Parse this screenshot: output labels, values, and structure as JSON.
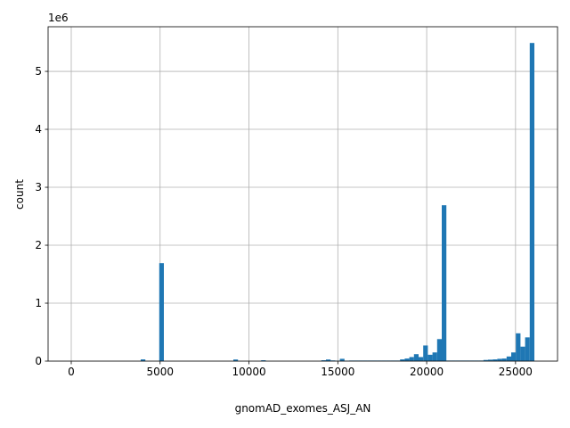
{
  "chart_data": {
    "type": "histogram",
    "xlabel": "gnomAD_exomes_ASJ_AN",
    "ylabel": "count",
    "y_offset_text": "1e6",
    "color": "#1f77b4",
    "grid": true,
    "xlim": [
      -1303,
      27363
    ],
    "ylim": [
      0,
      5770000
    ],
    "xticks": [
      0,
      5000,
      10000,
      15000,
      20000,
      25000
    ],
    "yticks": [
      {
        "value": 0,
        "label": "0"
      },
      {
        "value": 1000000,
        "label": "1"
      },
      {
        "value": 2000000,
        "label": "2"
      },
      {
        "value": 3000000,
        "label": "3"
      },
      {
        "value": 4000000,
        "label": "4"
      },
      {
        "value": 5000000,
        "label": "5"
      }
    ],
    "bins": [
      0,
      260.6,
      521.2,
      781.8,
      1042.4,
      1303,
      1563.6,
      1824.2,
      2084.8,
      2345.4,
      2606,
      2866.6,
      3127.2,
      3387.8,
      3648.4,
      3909,
      4169.6,
      4430.2,
      4690.8,
      4951.4,
      5212,
      5472.6,
      5733.2,
      5993.8,
      6254.4,
      6515,
      6775.6,
      7036.2,
      7296.8,
      7557.4,
      7818,
      8078.6,
      8339.2,
      8599.8,
      8860.4,
      9121,
      9381.6,
      9642.2,
      9902.8,
      10163.4,
      10424,
      10684.6,
      10945.2,
      11205.8,
      11466.4,
      11727,
      11987.6,
      12248.2,
      12508.8,
      12769.4,
      13030,
      13290.6,
      13551.2,
      13811.8,
      14072.4,
      14333,
      14593.6,
      14854.2,
      15114.8,
      15375.4,
      15636,
      15896.6,
      16157.2,
      16417.8,
      16678.4,
      16939,
      17199.6,
      17460.2,
      17720.8,
      17981.4,
      18242,
      18502.6,
      18763.2,
      19023.8,
      19284.4,
      19545,
      19805.6,
      20066.2,
      20326.8,
      20587.4,
      20848,
      21108.6,
      21369.2,
      21629.8,
      21890.4,
      22151,
      22411.6,
      22672.2,
      22932.8,
      23193.4,
      23454,
      23714.6,
      23975.2,
      24235.8,
      24496.4,
      24757,
      25017.6,
      25278.2,
      25538.8,
      25799.4,
      26060
    ],
    "values": [
      0,
      0,
      0,
      0,
      0,
      0,
      0,
      0,
      0,
      0,
      0,
      0,
      0,
      0,
      0,
      30000,
      0,
      0,
      0,
      1690000,
      0,
      0,
      0,
      0,
      0,
      0,
      0,
      0,
      0,
      0,
      0,
      0,
      0,
      0,
      0,
      28000,
      0,
      0,
      0,
      0,
      0,
      15000,
      0,
      0,
      0,
      0,
      0,
      0,
      0,
      0,
      0,
      0,
      0,
      0,
      15000,
      28000,
      12000,
      8000,
      40000,
      8000,
      10000,
      10000,
      10000,
      10000,
      10000,
      10000,
      10000,
      10000,
      10000,
      10000,
      10000,
      30000,
      45000,
      70000,
      120000,
      70000,
      270000,
      110000,
      150000,
      380000,
      2690000,
      10000,
      10000,
      10000,
      10000,
      10000,
      10000,
      10000,
      10000,
      20000,
      25000,
      30000,
      40000,
      45000,
      80000,
      150000,
      480000,
      250000,
      410000,
      5490000
    ]
  }
}
